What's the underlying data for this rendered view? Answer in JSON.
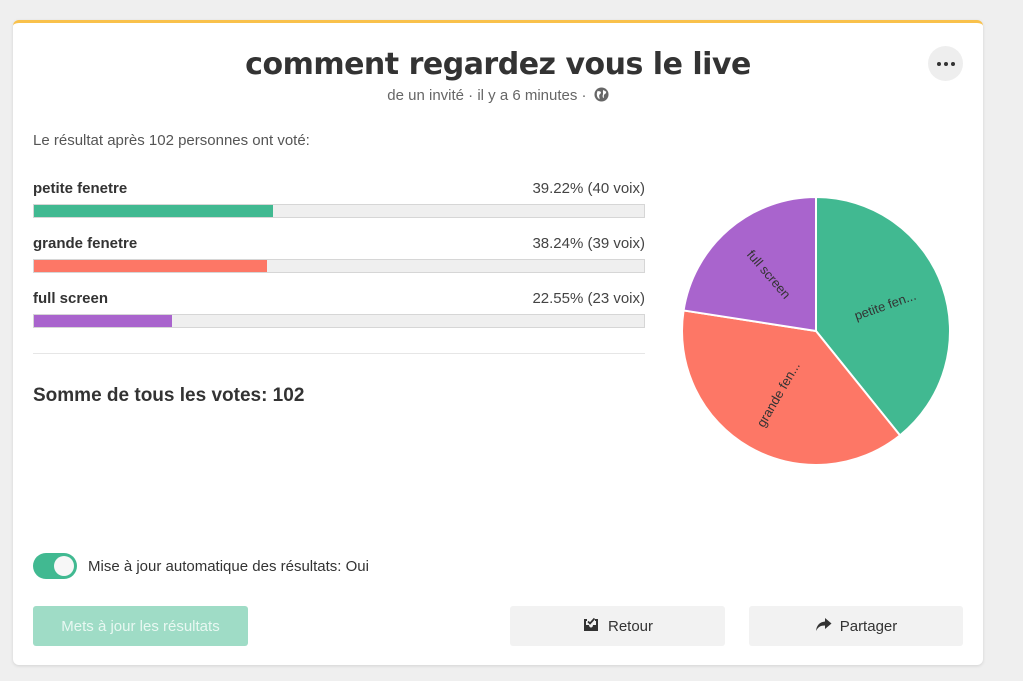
{
  "poll": {
    "title": "comment regardez vous le live",
    "meta": "de un invité · il y a 6 minutes ·",
    "summary": "Le résultat après 102 personnes ont voté:",
    "total_text": "Somme de tous les votes: 102"
  },
  "options": [
    {
      "label": "petite fenetre",
      "stats": "39.22% (40 voix)",
      "percent": 39.22,
      "color": "#41b991",
      "pie_label": "petite fen..."
    },
    {
      "label": "grande fenetre",
      "stats": "38.24% (39 voix)",
      "percent": 38.24,
      "color": "#fd7766",
      "pie_label": "grande fen..."
    },
    {
      "label": "full screen",
      "stats": "22.55% (23 voix)",
      "percent": 22.55,
      "color": "#a964cd",
      "pie_label": "full screen"
    }
  ],
  "chart_data": {
    "type": "pie",
    "categories": [
      "petite fenetre",
      "grande fenetre",
      "full screen"
    ],
    "values": [
      40,
      39,
      23
    ],
    "slice_labels": [
      "petite fen...",
      "grande fen...",
      "full screen"
    ],
    "colors": [
      "#41b991",
      "#fd7766",
      "#a964cd"
    ]
  },
  "auto_update": {
    "label": "Mise à jour automatique des résultats: Oui",
    "enabled": true
  },
  "buttons": {
    "update": "Mets à jour les résultats",
    "back": "Retour",
    "share": "Partager"
  },
  "icons": {
    "more": "more-options-icon",
    "globe": "globe-icon",
    "back": "inbox-icon",
    "share": "share-arrow-icon"
  },
  "colors": {
    "accent_top": "#f9c14b",
    "toggle_on": "#41b991"
  }
}
